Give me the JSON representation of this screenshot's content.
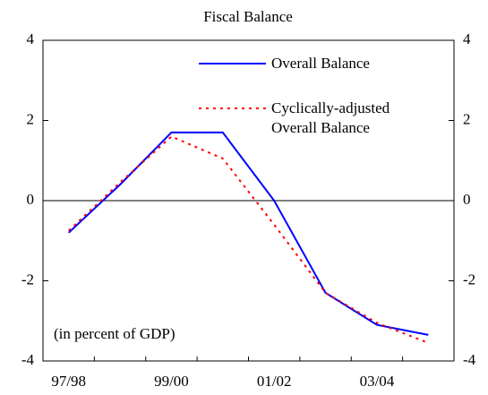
{
  "chart_data": {
    "type": "line",
    "title": "Fiscal Balance",
    "annotation": "(in percent of GDP)",
    "categories": [
      "97/98",
      null,
      "99/00",
      null,
      "01/02",
      null,
      "03/04",
      null
    ],
    "series": [
      {
        "name": "Overall Balance",
        "color": "#0000ff",
        "style": "solid",
        "values": [
          -0.8,
          0.4,
          1.7,
          1.7,
          0.0,
          -2.3,
          -3.1,
          -3.35
        ]
      },
      {
        "name": "Cyclically-adjusted Overall Balance",
        "color": "#ff0000",
        "style": "dotted",
        "values": [
          -0.75,
          0.45,
          1.6,
          1.05,
          -0.6,
          -2.3,
          -3.05,
          -3.55
        ]
      }
    ],
    "ylim": [
      -4,
      4
    ],
    "yticks": [
      4,
      2,
      0,
      -2,
      -4
    ],
    "y2lim": [
      -4,
      4
    ],
    "y2ticks": [
      4,
      2,
      0,
      -2,
      -4
    ]
  }
}
